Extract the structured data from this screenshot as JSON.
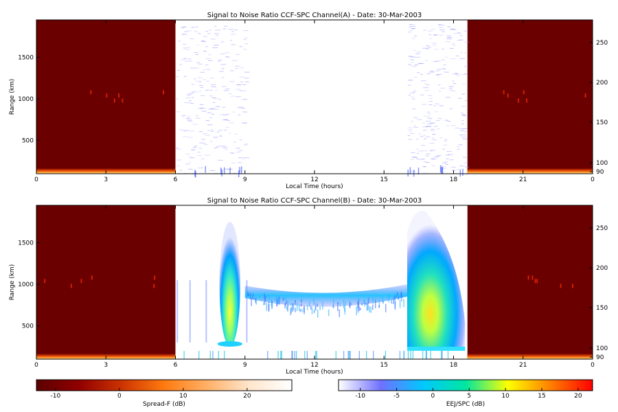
{
  "chart_data": [
    {
      "type": "heatmap",
      "title": "Signal to Noise Ratio CCF-SPC Channel(A) - Date: 30-Mar-2003",
      "xlabel": "Local Time (hours)",
      "ylabel": "Range (km)",
      "xlim": [
        0,
        24
      ],
      "ylim": [
        100,
        1950
      ],
      "x_ticks": [
        "0",
        "3",
        "6",
        "9",
        "12",
        "15",
        "18",
        "21",
        "0"
      ],
      "y_ticks": [
        "500",
        "1000",
        "1500"
      ],
      "right_ticks": [
        "90",
        "100",
        "150",
        "200",
        "250"
      ],
      "night_fill_hours": [
        [
          0,
          6
        ],
        [
          18.6,
          24
        ]
      ],
      "features": [
        {
          "name": "scattered weak echoes",
          "x_range": [
            6.0,
            9.0
          ],
          "y_range": [
            100,
            1900
          ]
        },
        {
          "name": "scattered weak echoes",
          "x_range": [
            16.0,
            18.5
          ],
          "y_range": [
            100,
            1900
          ]
        }
      ]
    },
    {
      "type": "heatmap",
      "title": "Signal to Noise Ratio CCF-SPC Channel(B) - Date: 30-Mar-2003",
      "xlabel": "Local Time (hours)",
      "ylabel": "Range (km)",
      "xlim": [
        0,
        24
      ],
      "ylim": [
        100,
        1950
      ],
      "x_ticks": [
        "0",
        "3",
        "6",
        "9",
        "12",
        "15",
        "18",
        "21",
        "0"
      ],
      "y_ticks": [
        "500",
        "1000",
        "1500"
      ],
      "right_ticks": [
        "90",
        "100",
        "150",
        "200",
        "250"
      ],
      "night_fill_hours": [
        [
          0,
          6
        ],
        [
          18.6,
          24
        ]
      ],
      "features": [
        {
          "name": "morning plume",
          "x_range": [
            7.9,
            8.8
          ],
          "y_range": [
            250,
            1750
          ]
        },
        {
          "name": "daytime EEJ layer",
          "x_range": [
            9.0,
            16.0
          ],
          "y_range": [
            600,
            1050
          ]
        },
        {
          "name": "afternoon plume",
          "x_range": [
            16.0,
            18.5
          ],
          "y_range": [
            200,
            1950
          ]
        }
      ]
    }
  ],
  "colorbars": [
    {
      "label": "Spread-F (dB)",
      "ticks": [
        "-10",
        "0",
        "10",
        "20"
      ],
      "range": [
        -13,
        27
      ],
      "colors": [
        "#5c0000",
        "#900000",
        "#cc3300",
        "#ff7a10",
        "#ffb066",
        "#ffe6cc",
        "#ffffff"
      ]
    },
    {
      "label": "EEJ/SPC (dB)",
      "ticks": [
        "-10",
        "-5",
        "0",
        "5",
        "10",
        "15",
        "20"
      ],
      "range": [
        -13,
        22
      ],
      "colors": [
        "#ffffff",
        "#7070ff",
        "#00c8ff",
        "#00e6a0",
        "#ffff00",
        "#ff8000",
        "#ff0000"
      ]
    }
  ],
  "colors": {
    "night": "#6b0000",
    "background": "#ffffff"
  }
}
